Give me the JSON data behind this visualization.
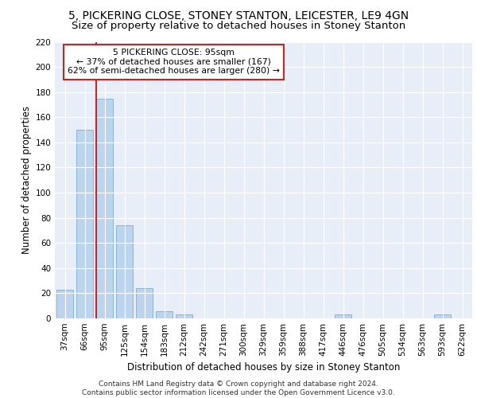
{
  "title1": "5, PICKERING CLOSE, STONEY STANTON, LEICESTER, LE9 4GN",
  "title2": "Size of property relative to detached houses in Stoney Stanton",
  "xlabel": "Distribution of detached houses by size in Stoney Stanton",
  "ylabel": "Number of detached properties",
  "categories": [
    "37sqm",
    "66sqm",
    "95sqm",
    "125sqm",
    "154sqm",
    "183sqm",
    "212sqm",
    "242sqm",
    "271sqm",
    "300sqm",
    "329sqm",
    "359sqm",
    "388sqm",
    "417sqm",
    "446sqm",
    "476sqm",
    "505sqm",
    "534sqm",
    "563sqm",
    "593sqm",
    "622sqm"
  ],
  "values": [
    23,
    150,
    175,
    74,
    24,
    6,
    3,
    0,
    0,
    0,
    0,
    0,
    0,
    0,
    3,
    0,
    0,
    0,
    0,
    3,
    0
  ],
  "bar_color": "#bcd4ee",
  "bar_edge_color": "#7aadd4",
  "red_line_index": 2,
  "annotation_text": "5 PICKERING CLOSE: 95sqm\n← 37% of detached houses are smaller (167)\n62% of semi-detached houses are larger (280) →",
  "annotation_box_color": "#ffffff",
  "annotation_box_edge_color": "#cc2222",
  "footer_line1": "Contains HM Land Registry data © Crown copyright and database right 2024.",
  "footer_line2": "Contains public sector information licensed under the Open Government Licence v3.0.",
  "ylim": [
    0,
    220
  ],
  "yticks": [
    0,
    20,
    40,
    60,
    80,
    100,
    120,
    140,
    160,
    180,
    200,
    220
  ],
  "bg_color": "#e8eef8",
  "grid_color": "#ffffff",
  "title1_fontsize": 10,
  "title2_fontsize": 9.5,
  "tick_fontsize": 7.5,
  "label_fontsize": 8.5,
  "footer_fontsize": 6.5
}
